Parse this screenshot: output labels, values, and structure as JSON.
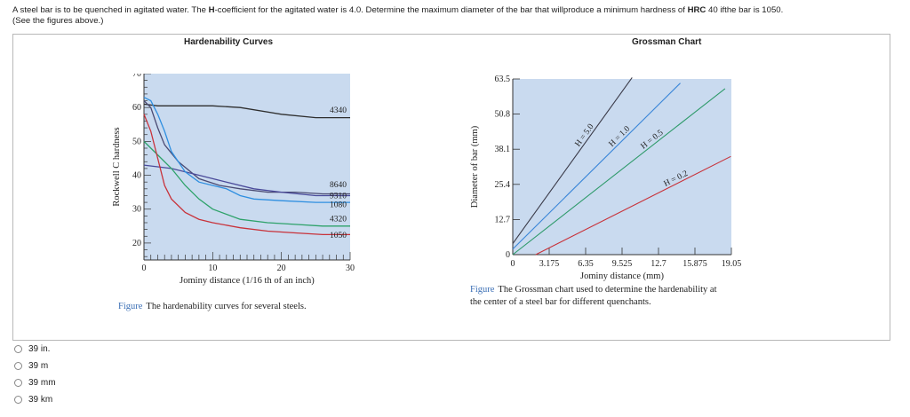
{
  "question": {
    "part1": "A steel bar is to be quenched in agitated water. The ",
    "part2": "H",
    "part3": "-coefficient for the agitated water is 4.0. Determine the maximum diameter of the bar that willproduce a minimum hardness of ",
    "part4": "HRC",
    "part5": " 40 ifthe bar is 1050.",
    "line2": "(See the figures above.)"
  },
  "left_panel": {
    "title": "Hardenability Curves",
    "caption_label": "Figure",
    "caption_text": "The hardenability curves for several steels."
  },
  "right_panel": {
    "title": "Grossman Chart",
    "caption_label": "Figure",
    "caption_text": "The Grossman chart used to determine the hardenability at the center of a steel bar for different quenchants."
  },
  "colors": {
    "panel_bg": "#c9daef",
    "caption_blue": "#3b6fb5"
  },
  "chart_data": [
    {
      "type": "line",
      "title": "Hardenability Curves",
      "xlabel": "Jominy distance (1/16 th of an inch)",
      "ylabel": "Rockwell C hardness",
      "xlim": [
        0,
        30
      ],
      "ylim": [
        15,
        70
      ],
      "xticks": [
        "0",
        "10",
        "20",
        "30"
      ],
      "yticks": [
        "20",
        "30",
        "40",
        "50",
        "60",
        "70"
      ],
      "series": [
        {
          "name": "4340",
          "color": "#2e2e2e",
          "x": [
            0,
            2,
            6,
            10,
            14,
            20,
            25,
            30
          ],
          "y": [
            61,
            60.5,
            60.5,
            60.5,
            60,
            58,
            57,
            57
          ]
        },
        {
          "name": "8640",
          "color": "#4a4a72",
          "x": [
            0,
            1,
            2,
            3,
            5,
            8,
            11,
            14,
            18,
            22,
            26,
            30
          ],
          "y": [
            62,
            60,
            54,
            49,
            44,
            39,
            37,
            36,
            35,
            35,
            34.5,
            34.5
          ]
        },
        {
          "name": "9310",
          "color": "#4a4a9a",
          "x": [
            0,
            2,
            4,
            8,
            12,
            16,
            20,
            25,
            30
          ],
          "y": [
            43,
            42.5,
            42,
            40,
            38,
            36,
            35,
            34,
            34
          ]
        },
        {
          "name": "1080",
          "color": "#2f8fe0",
          "x": [
            0,
            1,
            2,
            3,
            4,
            6,
            8,
            10,
            12,
            14,
            16,
            20,
            25,
            30
          ],
          "y": [
            63,
            62,
            58,
            53,
            47,
            41,
            38,
            37,
            36,
            34,
            33,
            32.5,
            32,
            32
          ]
        },
        {
          "name": "4320",
          "color": "#2ea26a",
          "x": [
            0,
            2,
            4,
            6,
            8,
            10,
            14,
            18,
            22,
            26,
            30
          ],
          "y": [
            50,
            46,
            42,
            37,
            33,
            30,
            27,
            26,
            25.5,
            25,
            25
          ]
        },
        {
          "name": "1050",
          "color": "#c8323a",
          "x": [
            0,
            1,
            2,
            3,
            4,
            6,
            8,
            10,
            14,
            18,
            22,
            26,
            30
          ],
          "y": [
            58,
            53,
            45,
            37,
            33,
            29,
            27,
            26,
            24.5,
            23.5,
            23,
            22.5,
            22.5
          ]
        }
      ]
    },
    {
      "type": "line",
      "title": "Grossman Chart",
      "xlabel": "Jominy distance (mm)",
      "ylabel": "Diameter of bar (mm)",
      "xlim": [
        0,
        19.05
      ],
      "ylim": [
        0,
        63.5
      ],
      "xticks": [
        "0",
        "3.175",
        "6.35",
        "9.525",
        "12.7",
        "15.875",
        "19.05"
      ],
      "yticks": [
        "0",
        "12.7",
        "25.4",
        "38.1",
        "50.8",
        "63.5"
      ],
      "series": [
        {
          "name": "H = 5.0",
          "color": "#3a3a48",
          "x": [
            0,
            10.4
          ],
          "y": [
            4,
            64
          ]
        },
        {
          "name": "H = 1.0",
          "color": "#3a86d8",
          "x": [
            0,
            14.6
          ],
          "y": [
            2,
            62
          ]
        },
        {
          "name": "H = 0.5",
          "color": "#2e9a6a",
          "x": [
            0,
            18.5
          ],
          "y": [
            0,
            60
          ]
        },
        {
          "name": "H = 0.2",
          "color": "#c8323a",
          "x": [
            2,
            19
          ],
          "y": [
            0,
            35.5
          ]
        }
      ]
    }
  ],
  "options": [
    {
      "label": "39 in."
    },
    {
      "label": "39 m"
    },
    {
      "label": "39 mm"
    },
    {
      "label": "39 km"
    }
  ]
}
